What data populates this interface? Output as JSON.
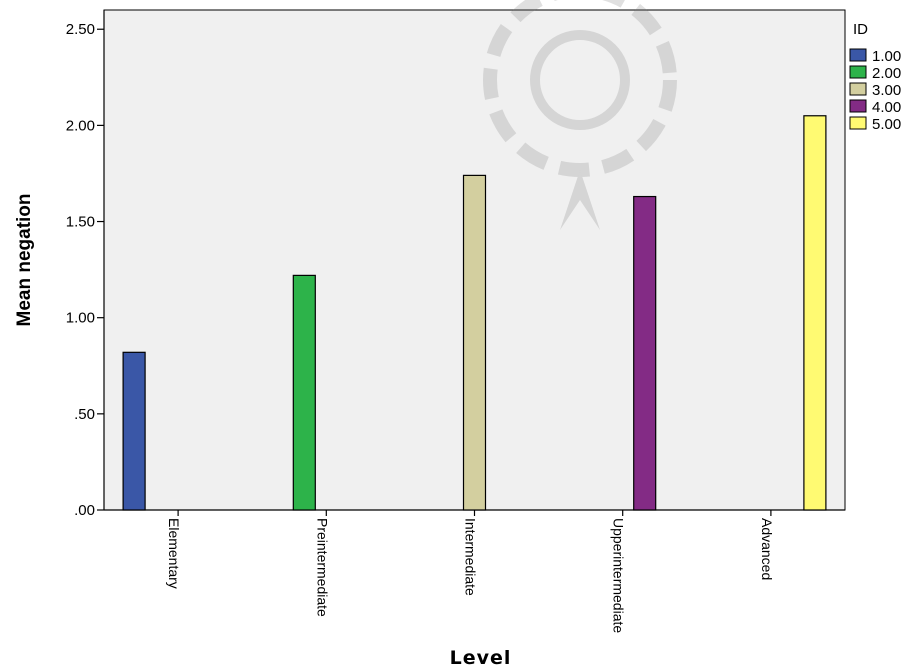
{
  "chart_data": {
    "type": "bar",
    "xlabel": "Level",
    "ylabel": "Mean negation",
    "ylim": [
      0,
      2.6
    ],
    "yticks": [
      ".00",
      ".50",
      "1.00",
      "1.50",
      "2.00",
      "2.50"
    ],
    "ytick_values": [
      0,
      0.5,
      1.0,
      1.5,
      2.0,
      2.5
    ],
    "categories": [
      "Elementary",
      "Preintermediate",
      "Intermediate",
      "Upperintermediate",
      "Advanced"
    ],
    "legend_title": "ID",
    "legend_position": "right",
    "grid": false,
    "series": [
      {
        "name": "1.00",
        "color": "#3a57a7",
        "values": [
          0.82,
          null,
          null,
          null,
          null
        ]
      },
      {
        "name": "2.00",
        "color": "#2db34a",
        "values": [
          null,
          1.22,
          null,
          null,
          null
        ]
      },
      {
        "name": "3.00",
        "color": "#d3cf9f",
        "values": [
          null,
          null,
          1.74,
          null,
          null
        ]
      },
      {
        "name": "4.00",
        "color": "#832b85",
        "values": [
          null,
          null,
          null,
          1.63,
          null
        ]
      },
      {
        "name": "5.00",
        "color": "#fffa72",
        "values": [
          null,
          null,
          null,
          null,
          2.05
        ]
      }
    ]
  }
}
